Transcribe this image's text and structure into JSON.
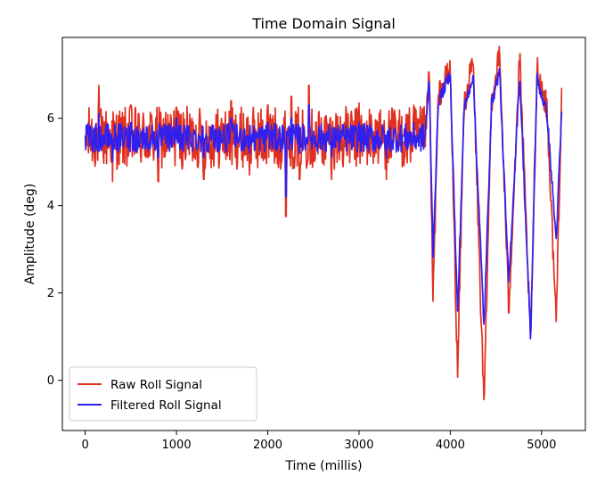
{
  "chart_data": {
    "type": "line",
    "title": "Time Domain Signal",
    "xlabel": "Time (millis)",
    "ylabel": "Amplitude (deg)",
    "xlim": [
      -250,
      5480
    ],
    "ylim": [
      -1.15,
      7.85
    ],
    "xticks": [
      0,
      1000,
      2000,
      3000,
      4000,
      5000
    ],
    "yticks": [
      0,
      2,
      4,
      6
    ],
    "grid": false,
    "legend_position": "lower-left",
    "colors": {
      "raw": "#e03020",
      "filtered": "#3020f0"
    },
    "x_range": [
      0,
      5220
    ],
    "series": [
      {
        "name": "Raw Roll Signal",
        "description_points": [
          [
            0,
            5.6
          ],
          [
            150,
            6.75
          ],
          [
            300,
            4.55
          ],
          [
            500,
            6.3
          ],
          [
            800,
            4.55
          ],
          [
            1000,
            6.25
          ],
          [
            1300,
            4.6
          ],
          [
            1600,
            6.4
          ],
          [
            1800,
            4.7
          ],
          [
            2000,
            6.3
          ],
          [
            2150,
            5.0
          ],
          [
            2200,
            3.75
          ],
          [
            2260,
            6.5
          ],
          [
            2350,
            4.6
          ],
          [
            2450,
            6.75
          ],
          [
            2700,
            4.6
          ],
          [
            3000,
            6.35
          ],
          [
            3300,
            4.6
          ],
          [
            3600,
            6.3
          ],
          [
            3720,
            5.4
          ],
          [
            3770,
            7.0
          ],
          [
            3810,
            1.8
          ],
          [
            3870,
            6.5
          ],
          [
            4000,
            7.15
          ],
          [
            4080,
            0.1
          ],
          [
            4150,
            6.3
          ],
          [
            4250,
            7.3
          ],
          [
            4370,
            -0.7
          ],
          [
            4450,
            6.4
          ],
          [
            4540,
            7.45
          ],
          [
            4640,
            1.6
          ],
          [
            4760,
            7.4
          ],
          [
            4880,
            0.85
          ],
          [
            4950,
            7.2
          ],
          [
            5060,
            6.2
          ],
          [
            5160,
            1.35
          ],
          [
            5220,
            6.6
          ]
        ]
      },
      {
        "name": "Filtered Roll Signal",
        "description_points": [
          [
            0,
            5.6
          ],
          [
            150,
            6.1
          ],
          [
            300,
            5.0
          ],
          [
            500,
            5.9
          ],
          [
            800,
            5.1
          ],
          [
            1000,
            6.0
          ],
          [
            1300,
            5.1
          ],
          [
            1600,
            6.0
          ],
          [
            1800,
            5.2
          ],
          [
            2000,
            5.9
          ],
          [
            2150,
            5.4
          ],
          [
            2200,
            4.2
          ],
          [
            2260,
            6.0
          ],
          [
            2350,
            5.2
          ],
          [
            2450,
            6.3
          ],
          [
            2700,
            5.1
          ],
          [
            3000,
            5.9
          ],
          [
            3300,
            5.1
          ],
          [
            3600,
            5.9
          ],
          [
            3720,
            5.5
          ],
          [
            3770,
            6.9
          ],
          [
            3810,
            2.9
          ],
          [
            3870,
            6.4
          ],
          [
            4000,
            7.0
          ],
          [
            4080,
            1.5
          ],
          [
            4150,
            6.2
          ],
          [
            4250,
            7.0
          ],
          [
            4370,
            1.2
          ],
          [
            4450,
            6.3
          ],
          [
            4540,
            7.1
          ],
          [
            4640,
            2.2
          ],
          [
            4760,
            7.0
          ],
          [
            4880,
            0.9
          ],
          [
            4950,
            6.9
          ],
          [
            5060,
            6.1
          ],
          [
            5160,
            3.2
          ],
          [
            5220,
            6.1
          ]
        ]
      }
    ]
  }
}
